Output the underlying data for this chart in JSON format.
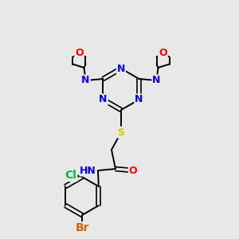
{
  "bg_color": "#e8e8e8",
  "bond_color": "#000000",
  "atom_colors": {
    "N": "#0000ee",
    "O": "#ff0000",
    "S": "#cccc00",
    "Cl": "#00bb44",
    "Br": "#cc6600",
    "H": "#778899",
    "C": "#000000"
  },
  "font_size": 9,
  "fig_size": [
    3.0,
    3.0
  ],
  "dpi": 100
}
